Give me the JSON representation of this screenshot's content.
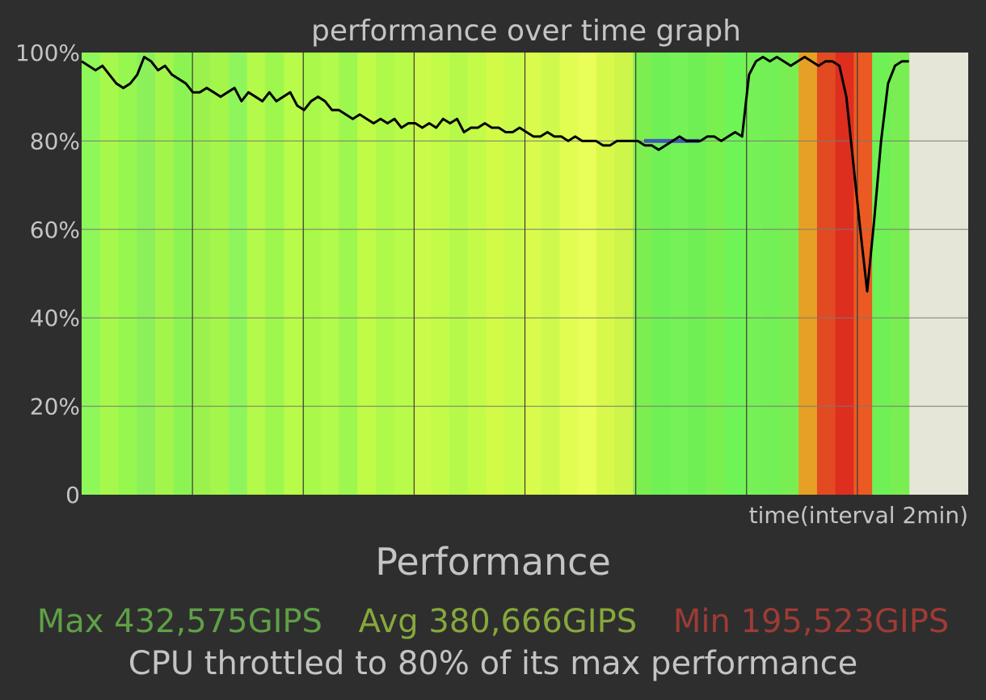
{
  "colors": {
    "background": "#2e2e2e",
    "plot_background": "#e6e6d8",
    "text": "#c4c4c4",
    "max": "#5fa046",
    "avg": "#86a83b",
    "min": "#9e3b35",
    "perf_line": "#000000",
    "throttle_line": "#3333cc"
  },
  "chart_data": {
    "type": "area",
    "title": "performance over time graph",
    "xlabel": "time(interval 2min)",
    "ylabel": "",
    "y_ticks": [
      "0",
      "20%",
      "40%",
      "60%",
      "80%",
      "100%"
    ],
    "ylim": [
      0,
      100
    ],
    "x_range_minutes": [
      0,
      16
    ],
    "x_grid_interval_minutes": 2,
    "data_end_minutes": 14.93,
    "grid": true,
    "throttle_level_percent": 80,
    "throttle_marker_minutes": [
      10.15,
      11.15
    ],
    "series": [
      {
        "values_percent": [
          98,
          97,
          96,
          97,
          95,
          93,
          92,
          93,
          95,
          99,
          98,
          96,
          97,
          95,
          94,
          93,
          91,
          91,
          92,
          91,
          90,
          91,
          92,
          89,
          91,
          90,
          89,
          91,
          89,
          90,
          91,
          88,
          87,
          89,
          90,
          89,
          87,
          87,
          86,
          85,
          86,
          85,
          84,
          85,
          84,
          85,
          83,
          84,
          84,
          83,
          84,
          83,
          85,
          84,
          85,
          82,
          83,
          83,
          84,
          83,
          83,
          82,
          82,
          83,
          82,
          81,
          81,
          82,
          81,
          81,
          80,
          81,
          80,
          80,
          80,
          79,
          79,
          80,
          80,
          80,
          80,
          79,
          79,
          78,
          79,
          80,
          81,
          80,
          80,
          80,
          81,
          81,
          80,
          81,
          82,
          81,
          95,
          98,
          99,
          98,
          99,
          98,
          97,
          98,
          99,
          98,
          97,
          98,
          98,
          97,
          90,
          75,
          60,
          46,
          62,
          80,
          93,
          97,
          98,
          98
        ],
        "colors": [
          "#8ef75a",
          "#a6f84c",
          "#96f74f",
          "#8cf05a",
          "#a3f54c",
          "#8cf452",
          "#9cf24c",
          "#a5f64a",
          "#8ff55c",
          "#b4fa4a",
          "#9ef74c",
          "#b8fb48",
          "#a9f84a",
          "#b2fa4b",
          "#9ef74e",
          "#c0fb48",
          "#aef94a",
          "#b8fb48",
          "#cafb4a",
          "#c2fb48",
          "#b6f94a",
          "#c4fa48",
          "#d2fb48",
          "#c8fb4a",
          "#d9fc4c",
          "#cff94c",
          "#e2fd52",
          "#e9fe58",
          "#d8f84c",
          "#cdf54a",
          "#7dee50",
          "#6ff155",
          "#74f257",
          "#70ef55",
          "#7af050",
          "#6ff457",
          "#75f156",
          "#72f055",
          "#79ee52",
          "#e6a026",
          "#e24a22",
          "#de2e20",
          "#ea5a22",
          "#6ff155",
          "#79ee52"
        ]
      }
    ]
  },
  "summary": {
    "title": "Performance",
    "max_label": "Max 432,575GIPS",
    "avg_label": "Avg 380,666GIPS",
    "min_label": "Min 195,523GIPS",
    "message": "CPU throttled to 80% of its max performance"
  }
}
